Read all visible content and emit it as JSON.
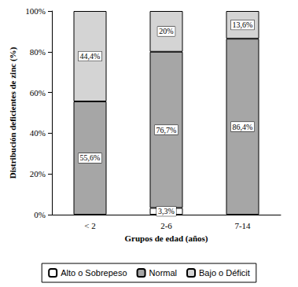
{
  "chart_data": {
    "type": "bar",
    "stacked": true,
    "grid": false,
    "legend": "bottom",
    "data_labels": true,
    "x_label": "Grupos de edad (años)",
    "y_label": "Distribución deficientes de zinc (%)",
    "categories": [
      "< 2",
      "2-6",
      "7-14"
    ],
    "ylim": [
      0,
      100
    ],
    "yticks": [
      {
        "value": 0,
        "label": "0%"
      },
      {
        "value": 20,
        "label": "20%"
      },
      {
        "value": 40,
        "label": "40%"
      },
      {
        "value": 60,
        "label": "60%"
      },
      {
        "value": 80,
        "label": "80%"
      },
      {
        "value": 100,
        "label": "100%"
      }
    ],
    "series": [
      {
        "name": "Alto o Sobrepeso",
        "color": "#ffffff",
        "values": [
          null,
          3.3,
          null
        ],
        "value_labels": [
          null,
          "3,3%",
          null
        ]
      },
      {
        "name": "Normal",
        "color": "#a6a6a6",
        "values": [
          55.6,
          76.7,
          86.4
        ],
        "value_labels": [
          "55,6%",
          "76,7%",
          "86,4%"
        ]
      },
      {
        "name": "Bajo o Déficit",
        "color": "#d4d4d4",
        "values": [
          44.4,
          20,
          13.6
        ],
        "value_labels": [
          "44,4%",
          "20%",
          "13,6%"
        ]
      }
    ]
  }
}
